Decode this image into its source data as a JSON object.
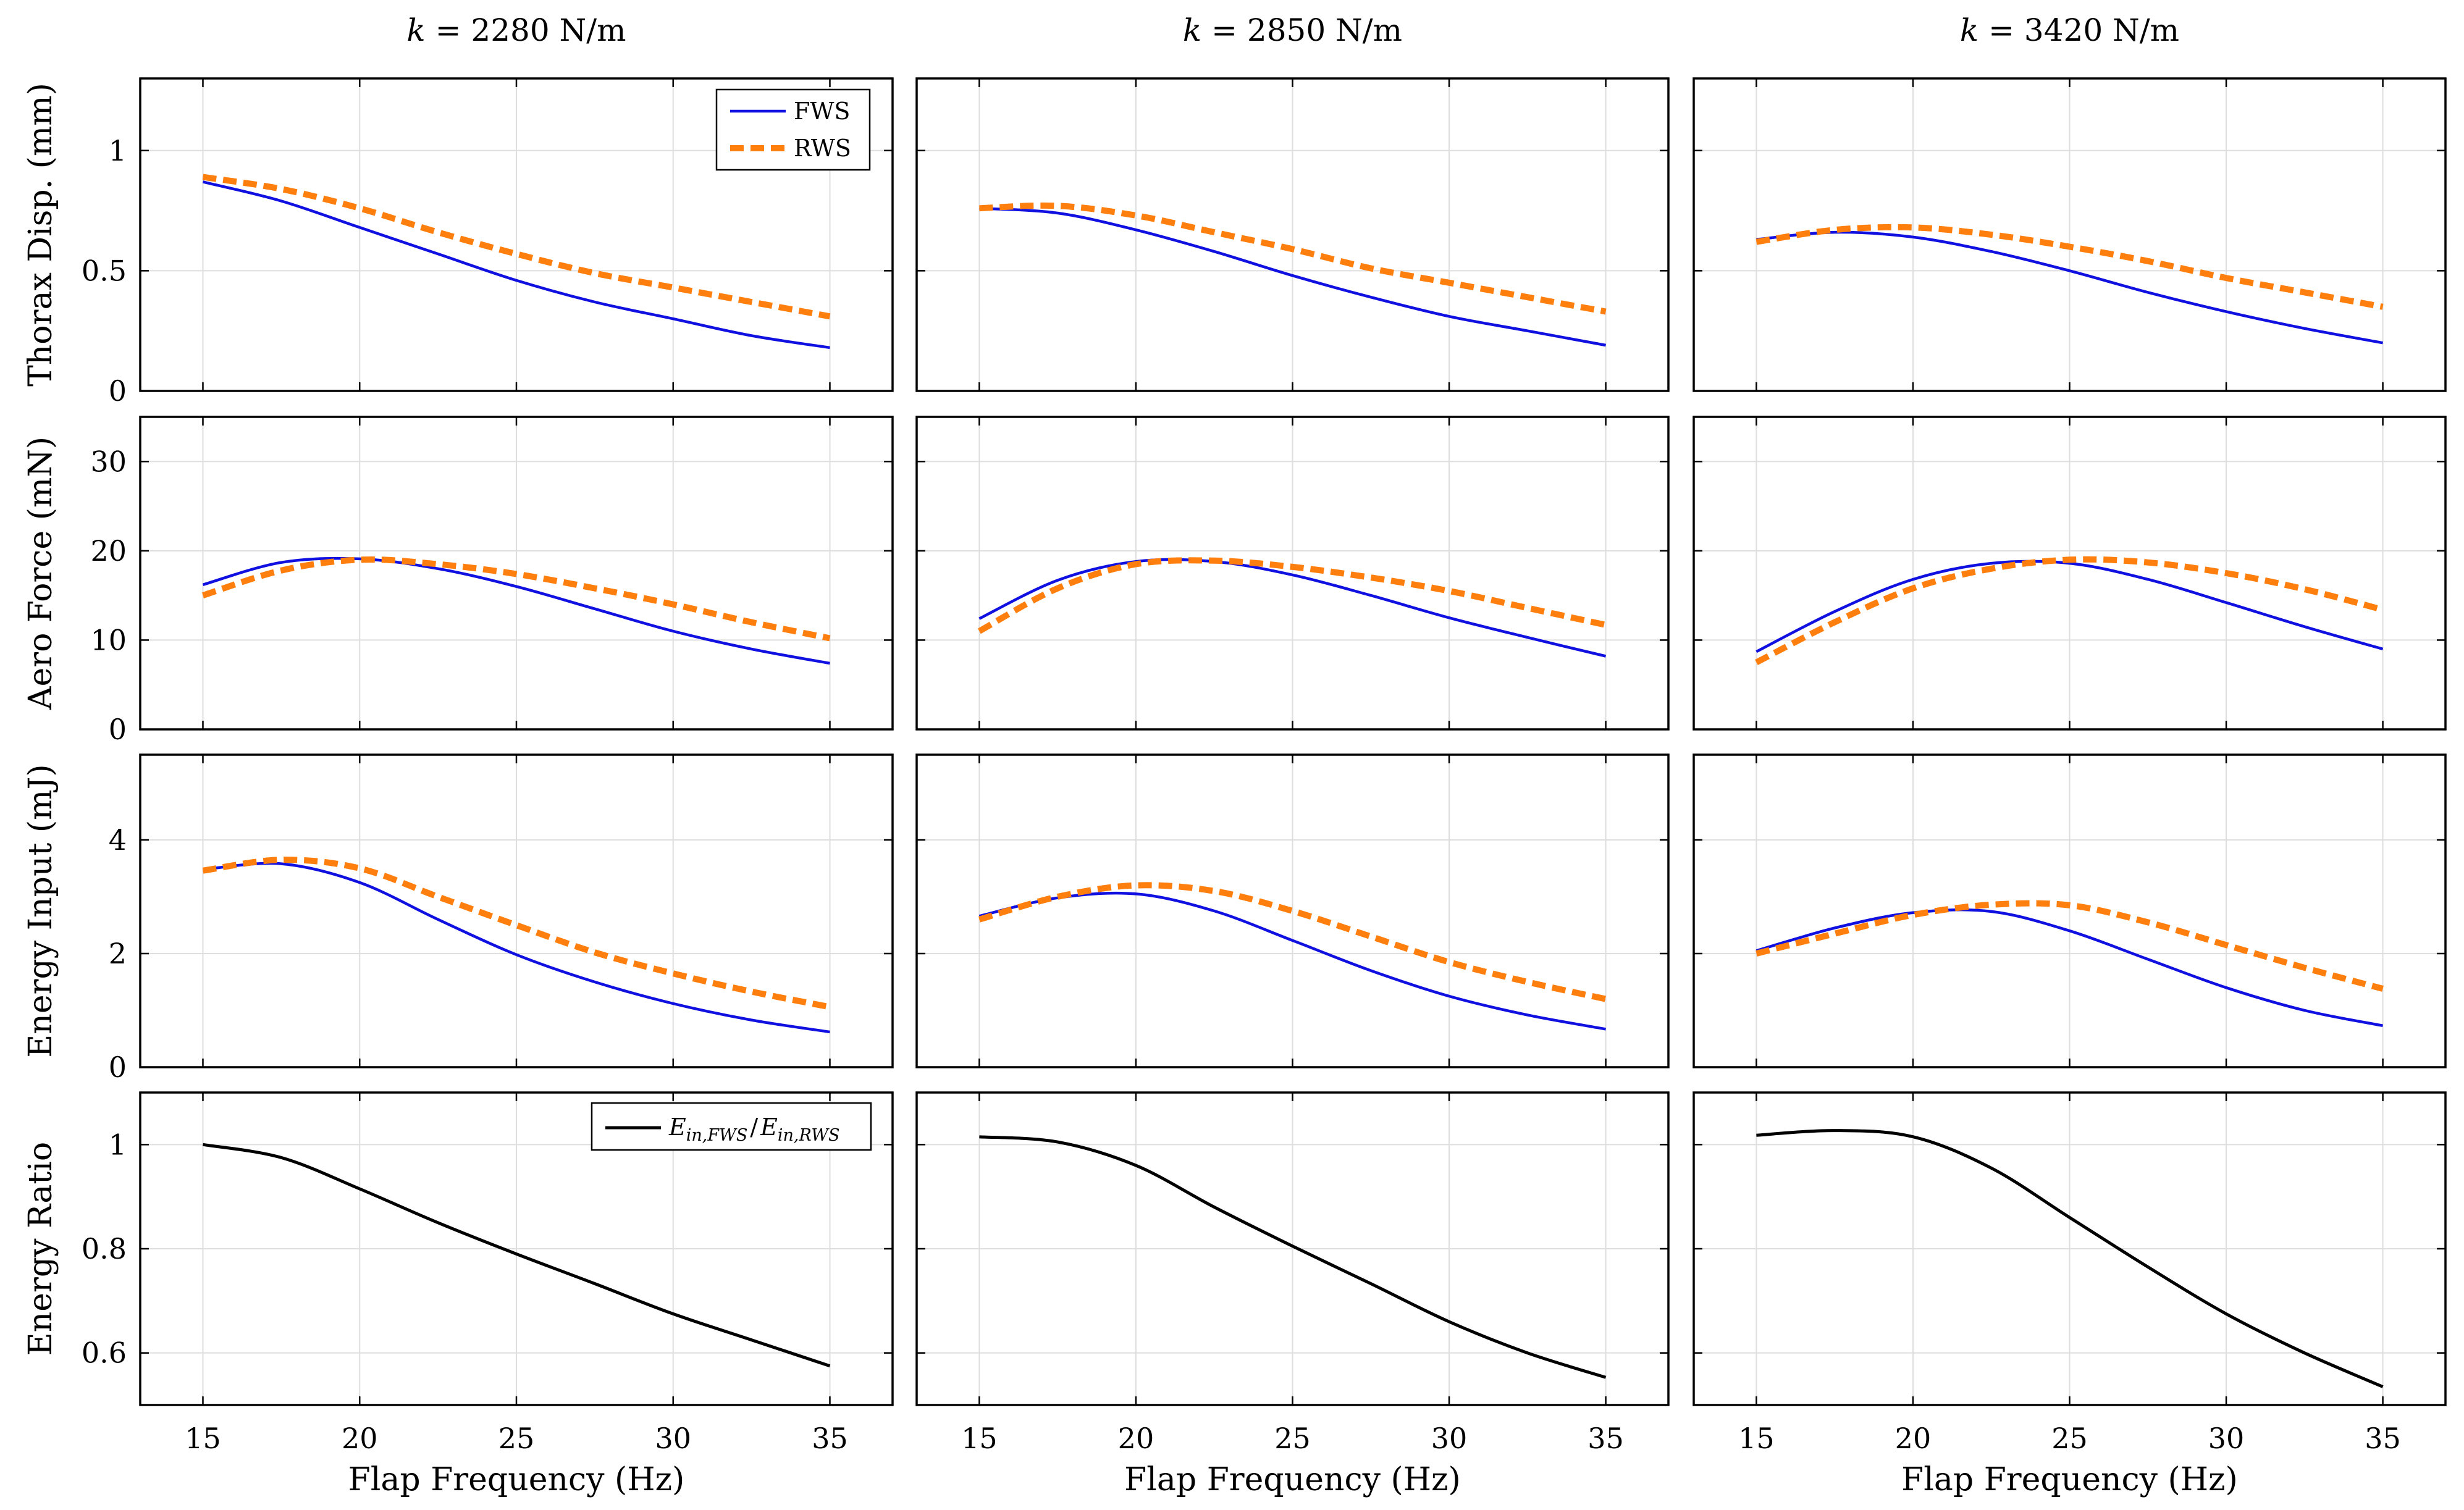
{
  "chart_data": {
    "type": "line",
    "columns": [
      {
        "title_var": "k",
        "title_rest": " = 2280 N/m"
      },
      {
        "title_var": "k",
        "title_rest": " = 2850 N/m"
      },
      {
        "title_var": "k",
        "title_rest": " = 3420 N/m"
      }
    ],
    "xlabel": "Flap Frequency (Hz)",
    "xlim": [
      13,
      37
    ],
    "xticks": [
      15,
      20,
      25,
      30,
      35
    ],
    "x": [
      15,
      17.5,
      20,
      22.5,
      25,
      27.5,
      30,
      32.5,
      35
    ],
    "rows": [
      {
        "ylabel": "Thorax Disp. (mm)",
        "ylim": [
          0,
          1.3
        ],
        "yticks": [
          0,
          0.5,
          1
        ],
        "ytick_labels": [
          "0",
          "0.5",
          "1"
        ],
        "legend": {
          "position": "top-right",
          "entries": [
            "FWS",
            "RWS"
          ]
        },
        "panels": [
          {
            "series": [
              {
                "name": "FWS",
                "values": [
                  0.87,
                  0.79,
                  0.68,
                  0.57,
                  0.46,
                  0.37,
                  0.3,
                  0.23,
                  0.18
                ]
              },
              {
                "name": "RWS",
                "values": [
                  0.89,
                  0.84,
                  0.76,
                  0.66,
                  0.57,
                  0.49,
                  0.43,
                  0.37,
                  0.31
                ]
              }
            ]
          },
          {
            "series": [
              {
                "name": "FWS",
                "values": [
                  0.76,
                  0.74,
                  0.67,
                  0.58,
                  0.48,
                  0.39,
                  0.31,
                  0.25,
                  0.19
                ]
              },
              {
                "name": "RWS",
                "values": [
                  0.76,
                  0.77,
                  0.73,
                  0.66,
                  0.59,
                  0.51,
                  0.45,
                  0.39,
                  0.33
                ]
              }
            ]
          },
          {
            "series": [
              {
                "name": "FWS",
                "values": [
                  0.63,
                  0.66,
                  0.64,
                  0.58,
                  0.5,
                  0.41,
                  0.33,
                  0.26,
                  0.2
                ]
              },
              {
                "name": "RWS",
                "values": [
                  0.62,
                  0.67,
                  0.68,
                  0.65,
                  0.6,
                  0.54,
                  0.47,
                  0.41,
                  0.35
                ]
              }
            ]
          }
        ]
      },
      {
        "ylabel": "Aero Force (mN)",
        "ylim": [
          0,
          35
        ],
        "yticks": [
          0,
          10,
          20,
          30
        ],
        "ytick_labels": [
          "0",
          "10",
          "20",
          "30"
        ],
        "panels": [
          {
            "series": [
              {
                "name": "FWS",
                "values": [
                  16.2,
                  18.7,
                  19.1,
                  18.0,
                  16.0,
                  13.5,
                  11.0,
                  9.0,
                  7.4
                ]
              },
              {
                "name": "RWS",
                "values": [
                  15.0,
                  17.8,
                  19.0,
                  18.5,
                  17.4,
                  15.8,
                  14.0,
                  12.0,
                  10.2
                ]
              }
            ]
          },
          {
            "series": [
              {
                "name": "FWS",
                "values": [
                  12.4,
                  16.7,
                  18.8,
                  18.8,
                  17.3,
                  15.0,
                  12.5,
                  10.3,
                  8.2
                ]
              },
              {
                "name": "RWS",
                "values": [
                  11.0,
                  15.8,
                  18.5,
                  18.9,
                  18.2,
                  17.0,
                  15.5,
                  13.6,
                  11.7
                ]
              }
            ]
          },
          {
            "series": [
              {
                "name": "FWS",
                "values": [
                  8.7,
                  13.2,
                  16.8,
                  18.6,
                  18.6,
                  16.8,
                  14.2,
                  11.5,
                  9.0
                ]
              },
              {
                "name": "RWS",
                "values": [
                  7.5,
                  12.0,
                  15.8,
                  18.0,
                  19.0,
                  18.7,
                  17.5,
                  15.7,
                  13.4
                ]
              }
            ]
          }
        ]
      },
      {
        "ylabel": "Energy Input (mJ)",
        "ylim": [
          0,
          5.5
        ],
        "yticks": [
          0,
          2,
          4
        ],
        "ytick_labels": [
          "0",
          "2",
          "4"
        ],
        "panels": [
          {
            "series": [
              {
                "name": "FWS",
                "values": [
                  3.48,
                  3.58,
                  3.25,
                  2.6,
                  1.98,
                  1.5,
                  1.12,
                  0.83,
                  0.62
                ]
              },
              {
                "name": "RWS",
                "values": [
                  3.46,
                  3.65,
                  3.5,
                  3.0,
                  2.5,
                  2.02,
                  1.65,
                  1.33,
                  1.06
                ]
              }
            ]
          },
          {
            "series": [
              {
                "name": "FWS",
                "values": [
                  2.66,
                  2.98,
                  3.05,
                  2.75,
                  2.23,
                  1.7,
                  1.25,
                  0.92,
                  0.67
                ]
              },
              {
                "name": "RWS",
                "values": [
                  2.6,
                  3.0,
                  3.2,
                  3.1,
                  2.75,
                  2.3,
                  1.85,
                  1.5,
                  1.2
                ]
              }
            ]
          },
          {
            "series": [
              {
                "name": "FWS",
                "values": [
                  2.05,
                  2.45,
                  2.72,
                  2.74,
                  2.4,
                  1.9,
                  1.4,
                  1.0,
                  0.73
                ]
              },
              {
                "name": "RWS",
                "values": [
                  2.0,
                  2.35,
                  2.68,
                  2.86,
                  2.85,
                  2.55,
                  2.15,
                  1.75,
                  1.38
                ]
              }
            ]
          }
        ]
      },
      {
        "ylabel": "Energy Ratio",
        "ylim": [
          0.5,
          1.1
        ],
        "yticks": [
          0.6,
          0.8,
          1
        ],
        "ytick_labels": [
          "0.6",
          "0.8",
          "1"
        ],
        "legend": {
          "position": "top-right",
          "entries": [
            "E_in,FWS / E_in,RWS"
          ],
          "main1": "E",
          "sub1": "in,FWS",
          "slash": "/",
          "main2": "E",
          "sub2": "in,RWS"
        },
        "panels": [
          {
            "series": [
              {
                "name": "E_in,FWS / E_in,RWS",
                "values": [
                  1.0,
                  0.975,
                  0.915,
                  0.85,
                  0.79,
                  0.733,
                  0.675,
                  0.625,
                  0.575
                ]
              }
            ]
          },
          {
            "series": [
              {
                "name": "E_in,FWS / E_in,RWS",
                "values": [
                  1.015,
                  1.005,
                  0.96,
                  0.88,
                  0.805,
                  0.733,
                  0.66,
                  0.6,
                  0.553
                ]
              }
            ]
          },
          {
            "series": [
              {
                "name": "E_in,FWS / E_in,RWS",
                "values": [
                  1.018,
                  1.027,
                  1.015,
                  0.955,
                  0.86,
                  0.765,
                  0.675,
                  0.6,
                  0.535
                ]
              }
            ]
          }
        ]
      }
    ],
    "colors": {
      "FWS": "#1010e0",
      "RWS": "#ff7f0e",
      "ratio": "#000000",
      "grid": "#dedede"
    }
  }
}
